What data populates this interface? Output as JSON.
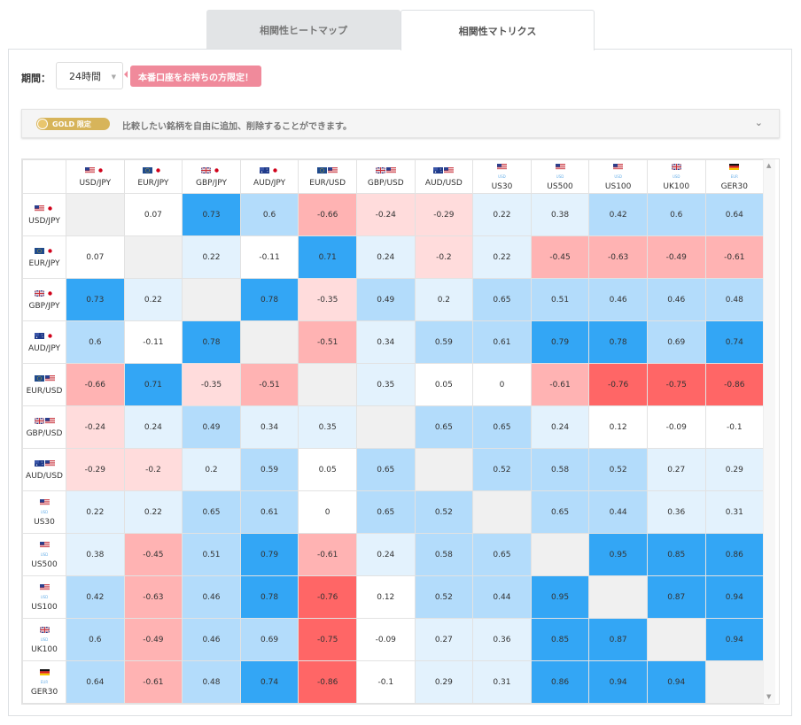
{
  "tabs": [
    {
      "label": "相関性ヒートマップ",
      "active": false
    },
    {
      "label": "相関性マトリクス",
      "active": true
    }
  ],
  "period": {
    "label": "期間：",
    "value": "24時間"
  },
  "promo": {
    "label": "本番口座をお持ちの方限定！"
  },
  "gold_bar": {
    "badge": "GOLD 限定",
    "text": "比較したい銘柄を自由に追加、削除することができます。"
  },
  "matrix": {
    "symbols": [
      {
        "name": "USD/JPY",
        "flags": [
          "us",
          "jp"
        ],
        "sub": ""
      },
      {
        "name": "EUR/JPY",
        "flags": [
          "eu",
          "jp"
        ],
        "sub": ""
      },
      {
        "name": "GBP/JPY",
        "flags": [
          "gb",
          "jp"
        ],
        "sub": ""
      },
      {
        "name": "AUD/JPY",
        "flags": [
          "au",
          "jp"
        ],
        "sub": ""
      },
      {
        "name": "EUR/USD",
        "flags": [
          "eu",
          "us"
        ],
        "sub": ""
      },
      {
        "name": "GBP/USD",
        "flags": [
          "gb",
          "us"
        ],
        "sub": ""
      },
      {
        "name": "AUD/USD",
        "flags": [
          "au",
          "us"
        ],
        "sub": ""
      },
      {
        "name": "US30",
        "flags": [
          "us"
        ],
        "sub": "USD"
      },
      {
        "name": "US500",
        "flags": [
          "us"
        ],
        "sub": "USD"
      },
      {
        "name": "US100",
        "flags": [
          "us"
        ],
        "sub": "USD"
      },
      {
        "name": "UK100",
        "flags": [
          "gb"
        ],
        "sub": "USD"
      },
      {
        "name": "GER30",
        "flags": [
          "de"
        ],
        "sub": "EUR"
      }
    ],
    "values": [
      [
        null,
        "0.07",
        "0.73",
        "0.6",
        "-0.66",
        "-0.24",
        "-0.29",
        "0.22",
        "0.38",
        "0.42",
        "0.6",
        "0.64"
      ],
      [
        "0.07",
        null,
        "0.22",
        "-0.11",
        "0.71",
        "0.24",
        "-0.2",
        "0.22",
        "-0.45",
        "-0.63",
        "-0.49",
        "-0.61"
      ],
      [
        "0.73",
        "0.22",
        null,
        "0.78",
        "-0.35",
        "0.49",
        "0.2",
        "0.65",
        "0.51",
        "0.46",
        "0.46",
        "0.48"
      ],
      [
        "0.6",
        "-0.11",
        "0.78",
        null,
        "-0.51",
        "0.34",
        "0.59",
        "0.61",
        "0.79",
        "0.78",
        "0.69",
        "0.74"
      ],
      [
        "-0.66",
        "0.71",
        "-0.35",
        "-0.51",
        null,
        "0.35",
        "0.05",
        "0",
        "-0.61",
        "-0.76",
        "-0.75",
        "-0.86"
      ],
      [
        "-0.24",
        "0.24",
        "0.49",
        "0.34",
        "0.35",
        null,
        "0.65",
        "0.65",
        "0.24",
        "0.12",
        "-0.09",
        "-0.1"
      ],
      [
        "-0.29",
        "-0.2",
        "0.2",
        "0.59",
        "0.05",
        "0.65",
        null,
        "0.52",
        "0.58",
        "0.52",
        "0.27",
        "0.29"
      ],
      [
        "0.22",
        "0.22",
        "0.65",
        "0.61",
        "0",
        "0.65",
        "0.52",
        null,
        "0.65",
        "0.44",
        "0.36",
        "0.31"
      ],
      [
        "0.38",
        "-0.45",
        "0.51",
        "0.79",
        "-0.61",
        "0.24",
        "0.58",
        "0.65",
        null,
        "0.95",
        "0.85",
        "0.86"
      ],
      [
        "0.42",
        "-0.63",
        "0.46",
        "0.78",
        "-0.76",
        "0.12",
        "0.52",
        "0.44",
        "0.95",
        null,
        "0.87",
        "0.94"
      ],
      [
        "0.6",
        "-0.49",
        "0.46",
        "0.69",
        "-0.75",
        "-0.09",
        "0.27",
        "0.36",
        "0.85",
        "0.87",
        null,
        "0.94"
      ],
      [
        "0.64",
        "-0.61",
        "0.48",
        "0.74",
        "-0.86",
        "-0.1",
        "0.29",
        "0.31",
        "0.86",
        "0.94",
        "0.94",
        null
      ]
    ]
  },
  "colors": {
    "strong_pos": "#33a6f5",
    "mid_pos": "#b3dcfb",
    "weak_pos": "#e3f2fd",
    "neutral": "#ffffff",
    "weak_neg": "#ffdcdc",
    "mid_neg": "#ffb3b3",
    "strong_neg": "#ff6666",
    "diagonal": "#f0f0f0"
  }
}
